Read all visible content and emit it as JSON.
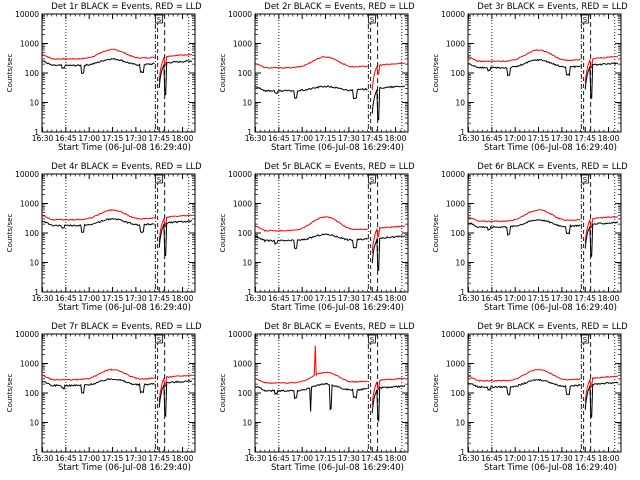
{
  "common": {
    "ylabel": "Counts/sec",
    "xlabel": "Start Time (06-Jul-08 16:29:40)",
    "x_ticks": [
      "16:30",
      "16:45",
      "17:00",
      "17:15",
      "17:30",
      "17:45",
      "18:00"
    ],
    "y_ticks": [
      "1",
      "10",
      "100",
      "1000",
      "10000"
    ],
    "annotation": "S",
    "colors": {
      "events": "#000000",
      "lld": "#ff0000",
      "axes": "#000000"
    }
  },
  "chart_data": [
    {
      "type": "line",
      "title": "Det 1r BLACK = Events, RED = LLD",
      "y_scale": "log",
      "ylim": [
        1,
        10000
      ],
      "xlim": [
        "16:29:40",
        "18:08"
      ],
      "x_unit": "minutes_after_16:30",
      "events_base": 180,
      "lld_base": 300,
      "lld_peak": 620,
      "events_peak": 300,
      "spikes": false
    },
    {
      "type": "line",
      "title": "Det 2r BLACK = Events, RED = LLD",
      "y_scale": "log",
      "ylim": [
        1,
        10000
      ],
      "xlim": [
        "16:29:40",
        "18:08"
      ],
      "x_unit": "minutes_after_16:30",
      "events_base": 25,
      "lld_base": 150,
      "lld_peak": 350,
      "events_peak": 35,
      "spikes": false
    },
    {
      "type": "line",
      "title": "Det 3r BLACK = Events, RED = LLD",
      "y_scale": "log",
      "ylim": [
        1,
        10000
      ],
      "xlim": [
        "16:29:40",
        "18:08"
      ],
      "x_unit": "minutes_after_16:30",
      "events_base": 150,
      "lld_base": 250,
      "lld_peak": 600,
      "events_peak": 280,
      "spikes": false
    },
    {
      "type": "line",
      "title": "Det 4r BLACK = Events, RED = LLD",
      "y_scale": "log",
      "ylim": [
        1,
        10000
      ],
      "xlim": [
        "16:29:40",
        "18:08"
      ],
      "x_unit": "minutes_after_16:30",
      "events_base": 180,
      "lld_base": 280,
      "lld_peak": 600,
      "events_peak": 300,
      "spikes": false
    },
    {
      "type": "line",
      "title": "Det 5r BLACK = Events, RED = LLD",
      "y_scale": "log",
      "ylim": [
        1,
        10000
      ],
      "xlim": [
        "16:29:40",
        "18:08"
      ],
      "x_unit": "minutes_after_16:30",
      "events_base": 55,
      "lld_base": 120,
      "lld_peak": 350,
      "events_peak": 90,
      "spikes": false
    },
    {
      "type": "line",
      "title": "Det 6r BLACK = Events, RED = LLD",
      "y_scale": "log",
      "ylim": [
        1,
        10000
      ],
      "xlim": [
        "16:29:40",
        "18:08"
      ],
      "x_unit": "minutes_after_16:30",
      "events_base": 160,
      "lld_base": 250,
      "lld_peak": 600,
      "events_peak": 280,
      "spikes": false
    },
    {
      "type": "line",
      "title": "Det 7r BLACK = Events, RED = LLD",
      "y_scale": "log",
      "ylim": [
        1,
        10000
      ],
      "xlim": [
        "16:29:40",
        "18:08"
      ],
      "x_unit": "minutes_after_16:30",
      "events_base": 180,
      "lld_base": 280,
      "lld_peak": 620,
      "events_peak": 300,
      "spikes": false
    },
    {
      "type": "line",
      "title": "Det 8r BLACK = Events, RED = LLD",
      "y_scale": "log",
      "ylim": [
        1,
        10000
      ],
      "xlim": [
        "16:29:40",
        "18:08"
      ],
      "x_unit": "minutes_after_16:30",
      "events_base": 120,
      "lld_base": 220,
      "lld_peak": 500,
      "events_peak": 200,
      "spikes": true
    },
    {
      "type": "line",
      "title": "Det 9r BLACK = Events, RED = LLD",
      "y_scale": "log",
      "ylim": [
        1,
        10000
      ],
      "xlim": [
        "16:29:40",
        "18:08"
      ],
      "x_unit": "minutes_after_16:30",
      "events_base": 160,
      "lld_base": 260,
      "lld_peak": 620,
      "events_peak": 280,
      "spikes": false
    }
  ]
}
